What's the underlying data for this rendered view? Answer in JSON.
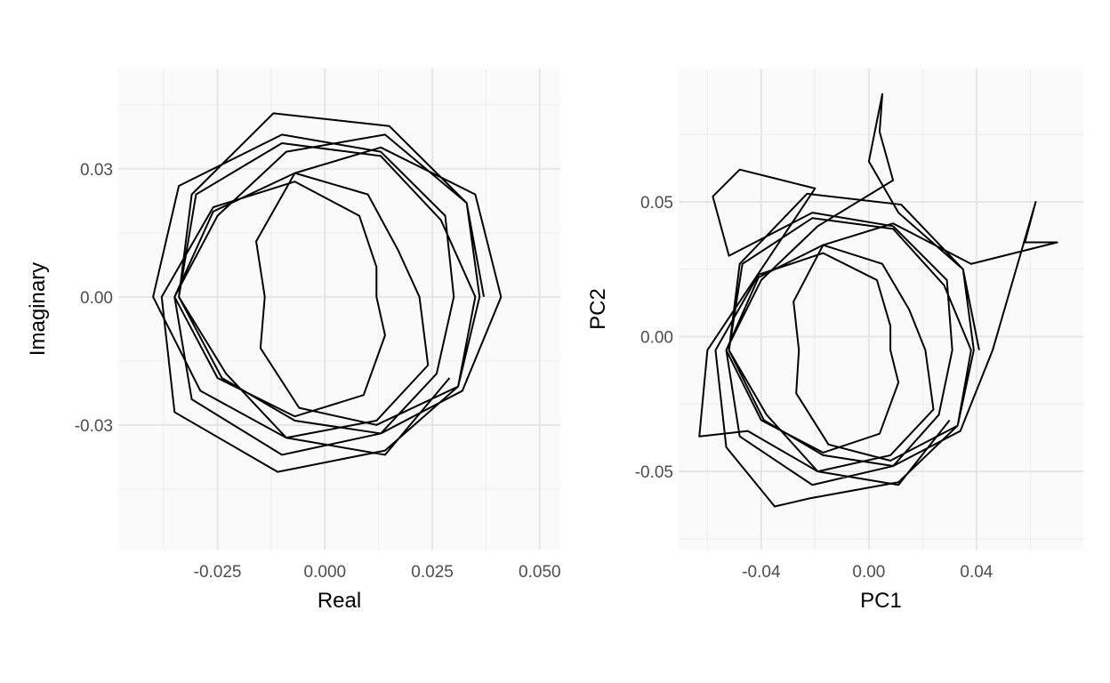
{
  "chart_data": [
    {
      "type": "path",
      "x_label": "Real",
      "y_label": "Imaginary",
      "color": "#000000",
      "grid": true,
      "xlim": [
        -0.0481,
        0.0548
      ],
      "ylim": [
        -0.0592,
        0.0535
      ],
      "xticks": [
        {
          "value": -0.025,
          "label": "-0.025"
        },
        {
          "value": 0,
          "label": "0.000"
        },
        {
          "value": 0.025,
          "label": "0.025"
        },
        {
          "value": 0.05,
          "label": "0.050"
        }
      ],
      "yticks": [
        {
          "value": -0.03,
          "label": "-0.03"
        },
        {
          "value": 0,
          "label": "0.00"
        },
        {
          "value": 0.03,
          "label": "0.03"
        }
      ],
      "x_minor_grid": [
        -0.0375,
        -0.0125,
        0.0125,
        0.0375
      ],
      "y_minor_grid": [
        -0.045,
        -0.015,
        0.015,
        0.045
      ],
      "x": [
        0.037,
        0.033,
        0.014,
        -0.009,
        -0.025,
        -0.035,
        -0.031,
        -0.01,
        0.013,
        0.026,
        0.03,
        0.028,
        0.013,
        -0.01,
        -0.034,
        -0.04,
        -0.029,
        -0.009,
        0.012,
        0.024,
        0.022,
        0.017,
        0.01,
        -0.007,
        -0.026,
        -0.035,
        -0.025,
        -0.007,
        0.009,
        0.014,
        0.012,
        0.012,
        0.008,
        -0.007,
        -0.026,
        -0.038,
        -0.035,
        -0.011,
        0.014,
        0.031,
        0.035,
        0.027,
        0.013,
        -0.01,
        -0.03,
        -0.034,
        -0.024,
        -0.007,
        0.013,
        0.032,
        0.041,
        0.035,
        0.013,
        -0.007,
        -0.016,
        -0.014,
        -0.015,
        -0.006,
        0.012,
        0.031,
        0.036,
        0.033,
        0.015,
        -0.012,
        -0.031,
        -0.034,
        -0.023,
        -0.009,
        0.014,
        0.029
      ],
      "y": [
        0,
        0.022,
        0.038,
        0.034,
        0.019,
        0,
        -0.024,
        -0.037,
        -0.032,
        -0.018,
        0,
        0.019,
        0.034,
        0.038,
        0.026,
        0,
        -0.022,
        -0.033,
        -0.029,
        -0.016,
        0,
        0.011,
        0.024,
        0.029,
        0.02,
        0,
        -0.019,
        -0.028,
        -0.023,
        -0.009,
        0,
        0.007,
        0.019,
        0.027,
        0.021,
        0,
        -0.027,
        -0.041,
        -0.036,
        -0.021,
        0,
        0.018,
        0.033,
        0.036,
        0.024,
        0,
        -0.019,
        -0.029,
        -0.032,
        -0.022,
        0,
        0.024,
        0.035,
        0.029,
        0.013,
        0,
        -0.012,
        -0.026,
        -0.03,
        -0.021,
        0,
        0.022,
        0.04,
        0.043,
        0.024,
        0,
        -0.018,
        -0.033,
        -0.037,
        -0.019
      ]
    },
    {
      "type": "path",
      "x_label": "PC1",
      "y_label": "PC2",
      "color": "#000000",
      "grid": true,
      "xlim": [
        -0.0707,
        0.0797
      ],
      "ylim": [
        -0.079,
        0.0995
      ],
      "xticks": [
        {
          "value": -0.04,
          "label": "-0.04"
        },
        {
          "value": 0,
          "label": "0.00"
        },
        {
          "value": 0.04,
          "label": "0.04"
        }
      ],
      "yticks": [
        {
          "value": -0.05,
          "label": "-0.05"
        },
        {
          "value": 0,
          "label": "0.00"
        },
        {
          "value": 0.05,
          "label": "0.05"
        }
      ],
      "x_minor_grid": [
        -0.06,
        -0.02,
        0.02,
        0.06
      ],
      "y_minor_grid": [
        -0.075,
        -0.025,
        0.025,
        0.075
      ],
      "x": [
        0.041,
        0.035,
        0.011,
        0,
        0.005,
        0.004,
        0.009,
        -0.019,
        -0.04,
        -0.053,
        -0.048,
        -0.021,
        0.009,
        0.026,
        0.031,
        0.029,
        0.009,
        -0.021,
        -0.052,
        -0.058,
        -0.048,
        -0.032,
        -0.02,
        -0.06,
        -0.063,
        -0.045,
        -0.019,
        0.008,
        0.024,
        0.021,
        0.015,
        0.005,
        -0.017,
        -0.041,
        -0.053,
        -0.04,
        -0.017,
        0.004,
        0.011,
        0.008,
        0.008,
        0.003,
        -0.017,
        -0.041,
        -0.057,
        -0.053,
        -0.035,
        -0.022,
        0.011,
        0.033,
        0.038,
        0.028,
        0.009,
        -0.021,
        -0.047,
        -0.052,
        -0.039,
        -0.017,
        0.009,
        0.034,
        0.046,
        0.062,
        0.058,
        0.07,
        0.038,
        0.009,
        -0.017,
        -0.028,
        -0.026,
        -0.027,
        -0.015,
        0.008,
        0.033,
        0.039,
        0.035,
        0.012,
        -0.023,
        -0.048,
        -0.052,
        -0.038,
        -0.019,
        0.011,
        0.03
      ],
      "y": [
        -0.005,
        0.025,
        0.046,
        0.065,
        0.09,
        0.076,
        0.058,
        0.041,
        0.021,
        -0.005,
        -0.037,
        -0.055,
        -0.048,
        -0.029,
        -0.005,
        0.021,
        0.041,
        0.046,
        0.03,
        0.052,
        0.062,
        0.058,
        0.055,
        -0.005,
        -0.037,
        -0.035,
        -0.05,
        -0.044,
        -0.027,
        -0.005,
        0.01,
        0.027,
        0.034,
        0.022,
        -0.005,
        -0.031,
        -0.043,
        -0.036,
        -0.017,
        -0.005,
        0.004,
        0.021,
        0.031,
        0.023,
        -0.005,
        -0.041,
        -0.063,
        -0.06,
        -0.054,
        -0.033,
        -0.005,
        0.019,
        0.04,
        0.044,
        0.027,
        -0.005,
        -0.031,
        -0.044,
        -0.048,
        -0.035,
        -0.005,
        0.05,
        0.035,
        0.035,
        0.027,
        0.042,
        0.034,
        0.013,
        -0.005,
        -0.021,
        -0.04,
        -0.046,
        -0.033,
        -0.005,
        0.025,
        0.049,
        0.053,
        0.027,
        -0.005,
        -0.029,
        -0.05,
        -0.055,
        -0.031
      ]
    }
  ]
}
